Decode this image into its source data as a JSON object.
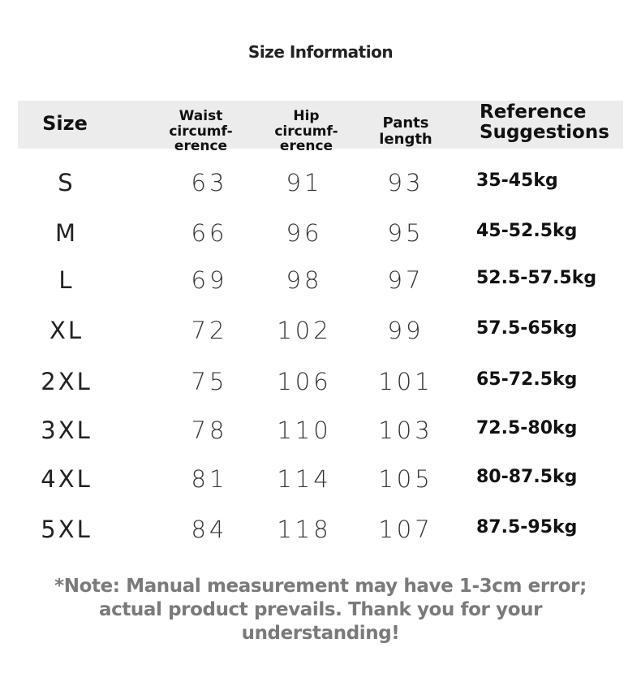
{
  "header": {
    "title": "Size Information"
  },
  "table": {
    "columns": [
      "Size",
      "Waist circumf-\nerence",
      "Hip circumf-\nerence",
      "Pants length",
      "Reference\nSuggestions"
    ],
    "rows": [
      [
        "S",
        63,
        91,
        93,
        "35-45kg"
      ],
      [
        "M",
        66,
        96,
        95,
        "45-52.5kg"
      ],
      [
        "L",
        69,
        98,
        97,
        "52.5-57.5kg"
      ],
      [
        "XL",
        72,
        102,
        99,
        "57.5-65kg"
      ],
      [
        "2XL",
        75,
        106,
        101,
        "65-72.5kg"
      ],
      [
        "3XL",
        78,
        110,
        103,
        "72.5-80kg"
      ],
      [
        "4XL",
        81,
        114,
        105,
        "80-87.5kg"
      ],
      [
        "5XL",
        84,
        118,
        107,
        "87.5-95kg"
      ]
    ]
  },
  "note": "*Note: Manual measurement may have 1-3cm error; actual product prevails. Thank you for your understanding!"
}
